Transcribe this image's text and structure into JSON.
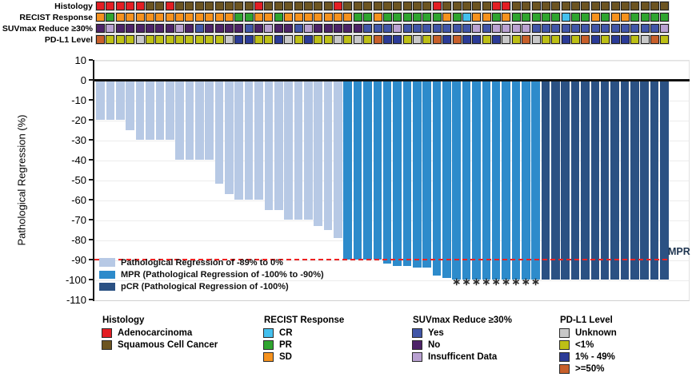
{
  "tracks": {
    "palette": {
      "A": "#e31e24",
      "S": "#6c5421",
      "SD": "#f6921e",
      "PR": "#2fa52f",
      "CR": "#44c0ee",
      "Y": "#4156a8",
      "N": "#4d2368",
      "I": "#b9a1d1",
      "U": "#c8c8c8",
      "L": "#bdbf16",
      "M": "#2b3b97",
      "H": "#c8602b"
    },
    "rows": [
      {
        "label": "Histology",
        "values": [
          "A",
          "A",
          "A",
          "A",
          "A",
          "S",
          "S",
          "A",
          "S",
          "S",
          "S",
          "S",
          "S",
          "S",
          "S",
          "S",
          "A",
          "S",
          "S",
          "S",
          "S",
          "S",
          "S",
          "S",
          "A",
          "S",
          "S",
          "S",
          "S",
          "S",
          "S",
          "S",
          "S",
          "S",
          "A",
          "S",
          "S",
          "S",
          "S",
          "S",
          "A",
          "A",
          "S",
          "S",
          "S",
          "S",
          "S",
          "S",
          "S",
          "S",
          "S",
          "S",
          "S",
          "S",
          "S",
          "S",
          "S",
          "S"
        ]
      },
      {
        "label": "RECIST Response",
        "values": [
          "SD",
          "PR",
          "SD",
          "SD",
          "SD",
          "SD",
          "SD",
          "SD",
          "SD",
          "SD",
          "SD",
          "SD",
          "SD",
          "SD",
          "PR",
          "PR",
          "SD",
          "SD",
          "PR",
          "SD",
          "SD",
          "SD",
          "SD",
          "SD",
          "SD",
          "SD",
          "PR",
          "PR",
          "SD",
          "PR",
          "PR",
          "PR",
          "PR",
          "PR",
          "PR",
          "SD",
          "PR",
          "CR",
          "SD",
          "SD",
          "PR",
          "SD",
          "PR",
          "PR",
          "PR",
          "PR",
          "PR",
          "CR",
          "PR",
          "PR",
          "SD",
          "PR",
          "SD",
          "SD",
          "PR",
          "PR",
          "PR",
          "PR"
        ]
      },
      {
        "label": "SUVmax Reduce ≥30%",
        "values": [
          "N",
          "I",
          "N",
          "N",
          "N",
          "N",
          "N",
          "N",
          "I",
          "N",
          "Y",
          "N",
          "N",
          "N",
          "N",
          "Y",
          "N",
          "I",
          "N",
          "N",
          "Y",
          "I",
          "N",
          "N",
          "N",
          "N",
          "N",
          "Y",
          "Y",
          "Y",
          "I",
          "Y",
          "Y",
          "Y",
          "Y",
          "Y",
          "Y",
          "Y",
          "I",
          "Y",
          "I",
          "I",
          "I",
          "I",
          "Y",
          "Y",
          "Y",
          "Y",
          "Y",
          "Y",
          "Y",
          "Y",
          "Y",
          "Y",
          "Y",
          "Y",
          "Y",
          "I"
        ]
      },
      {
        "label": "PD-L1 Level",
        "values": [
          "H",
          "L",
          "L",
          "L",
          "U",
          "L",
          "L",
          "L",
          "L",
          "L",
          "L",
          "L",
          "L",
          "U",
          "M",
          "M",
          "L",
          "L",
          "M",
          "U",
          "L",
          "M",
          "L",
          "L",
          "U",
          "L",
          "U",
          "L",
          "H",
          "M",
          "M",
          "L",
          "U",
          "L",
          "H",
          "M",
          "H",
          "M",
          "M",
          "L",
          "M",
          "U",
          "L",
          "H",
          "U",
          "L",
          "L",
          "M",
          "L",
          "H",
          "M",
          "L",
          "M",
          "M",
          "L",
          "U",
          "H",
          "L"
        ]
      }
    ]
  },
  "chart_data": {
    "type": "bar",
    "title": "",
    "xlabel": "",
    "ylabel": "Pathological Regression (%)",
    "ylim": [
      -110,
      10
    ],
    "yticks": [
      10,
      0,
      -10,
      -20,
      -30,
      -40,
      -50,
      -60,
      -70,
      -80,
      -90,
      -100,
      -110
    ],
    "grid": true,
    "n_patients": 58,
    "values": [
      -20,
      -20,
      -20,
      -25,
      -30,
      -30,
      -30,
      -30,
      -40,
      -40,
      -40,
      -40,
      -52,
      -57,
      -60,
      -60,
      -60,
      -65,
      -65,
      -70,
      -70,
      -70,
      -73,
      -75,
      -79,
      -90,
      -90,
      -90,
      -90,
      -92,
      -93,
      -93,
      -94,
      -94,
      -98,
      -99,
      -100,
      -100,
      -100,
      -100,
      -100,
      -100,
      -100,
      -100,
      -100,
      -100,
      -100,
      -100,
      -100,
      -100,
      -100,
      -100,
      -100,
      -100,
      -100,
      -100,
      -100,
      -100
    ],
    "groups": [
      "partial",
      "partial",
      "partial",
      "partial",
      "partial",
      "partial",
      "partial",
      "partial",
      "partial",
      "partial",
      "partial",
      "partial",
      "partial",
      "partial",
      "partial",
      "partial",
      "partial",
      "partial",
      "partial",
      "partial",
      "partial",
      "partial",
      "partial",
      "partial",
      "partial",
      "mpr",
      "mpr",
      "mpr",
      "mpr",
      "mpr",
      "mpr",
      "mpr",
      "mpr",
      "mpr",
      "mpr",
      "mpr",
      "mpr",
      "mpr",
      "mpr",
      "mpr",
      "mpr",
      "mpr",
      "mpr",
      "mpr",
      "mpr",
      "pcr",
      "pcr",
      "pcr",
      "pcr",
      "pcr",
      "pcr",
      "pcr",
      "pcr",
      "pcr",
      "pcr",
      "pcr",
      "pcr",
      "pcr"
    ],
    "bar_colors": {
      "partial": "#b7c9e5",
      "mpr": "#2d8bcb",
      "pcr": "#2b5183"
    },
    "asterisk_bar_indices": [
      36,
      37,
      38,
      39,
      40,
      41,
      42,
      43,
      44
    ],
    "asterisk_symbol": "∗",
    "reference_line": {
      "y": -90,
      "label": "MPR",
      "style": "dashed",
      "color": "#ee2222"
    },
    "legend_position": "lower left",
    "legend": [
      {
        "key": "partial",
        "label": "Pathological Regression of -89% to 0%",
        "color": "#b7c9e5"
      },
      {
        "key": "mpr",
        "label": "MPR (Pathological Regression of -100% to -90%)",
        "color": "#2d8bcb"
      },
      {
        "key": "pcr",
        "label": "pCR (Pathological Regression of -100%)",
        "color": "#2b5183"
      }
    ]
  },
  "legends": [
    {
      "title": "Histology",
      "x": 127,
      "items": [
        {
          "label": "Adenocarcinoma",
          "color": "#e31e24"
        },
        {
          "label": "Squamous Cell Cancer",
          "color": "#6c5421"
        }
      ]
    },
    {
      "title": "RECIST Response",
      "x": 329,
      "items": [
        {
          "label": "CR",
          "color": "#44c0ee"
        },
        {
          "label": "PR",
          "color": "#2fa52f"
        },
        {
          "label": "SD",
          "color": "#f6921e"
        }
      ]
    },
    {
      "title": "SUVmax Reduce ≥30%",
      "x": 515,
      "items": [
        {
          "label": "Yes",
          "color": "#4156a8"
        },
        {
          "label": "No",
          "color": "#4d2368"
        },
        {
          "label": "Insufficent Data",
          "color": "#b9a1d1"
        }
      ]
    },
    {
      "title": "PD-L1 Level",
      "x": 699,
      "items": [
        {
          "label": "Unknown",
          "color": "#c8c8c8"
        },
        {
          "label": "<1%",
          "color": "#bdbf16"
        },
        {
          "label": "1% - 49%",
          "color": "#2b3b97"
        },
        {
          "label": ">=50%",
          "color": "#c8602b"
        }
      ]
    }
  ]
}
